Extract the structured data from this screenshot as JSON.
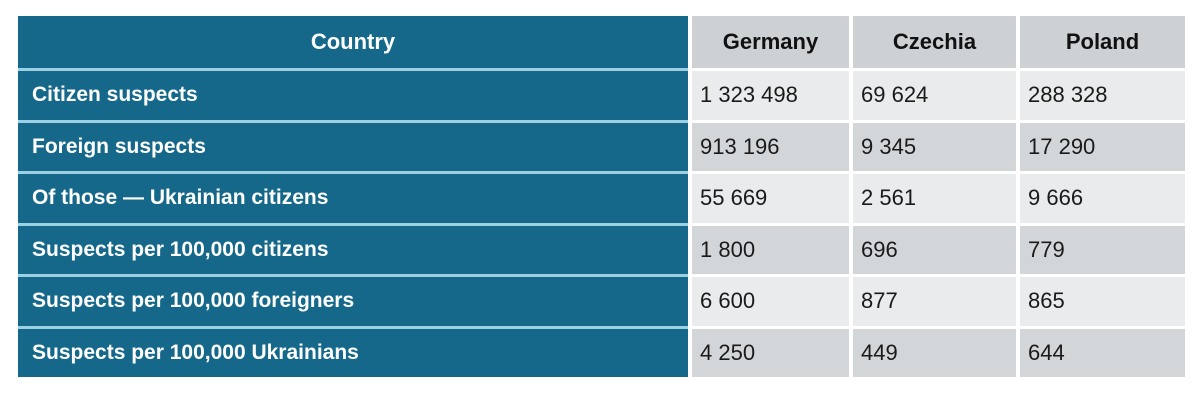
{
  "chart_data": {
    "type": "table",
    "columns": [
      "Country",
      "Germany",
      "Czechia",
      "Poland"
    ],
    "rows": [
      {
        "label": "Citizen suspects",
        "values": [
          "1 323 498",
          "69 624",
          "288 328"
        ]
      },
      {
        "label": "Foreign suspects",
        "values": [
          "913 196",
          "9 345",
          "17 290"
        ]
      },
      {
        "label": "Of those — Ukrainian citizens",
        "values": [
          "55 669",
          "2 561",
          "9 666"
        ]
      },
      {
        "label": "Suspects per 100,000 citizens",
        "values": [
          "1 800",
          "696",
          "779"
        ]
      },
      {
        "label": "Suspects per 100,000 foreigners",
        "values": [
          "6 600",
          "877",
          "865"
        ]
      },
      {
        "label": "Suspects per 100,000 Ukrainians",
        "values": [
          "4 250",
          "449",
          "644"
        ]
      }
    ],
    "layout_hints": {
      "label_column_style": "teal background, white bold text, left aligned",
      "value_columns_style": "alternating gray rows, black text, left aligned",
      "header_style": "country label on teal, country names on gray, centered bold"
    }
  },
  "colors": {
    "teal": "#15688A",
    "row_separator_teal": "#9CD1E4",
    "header_gray": "#CDD1D4",
    "row_light": "#E9EBEC",
    "row_dark": "#D3D6D9",
    "text_dark": "#1A1A1A",
    "text_light": "#FFFFFF"
  }
}
